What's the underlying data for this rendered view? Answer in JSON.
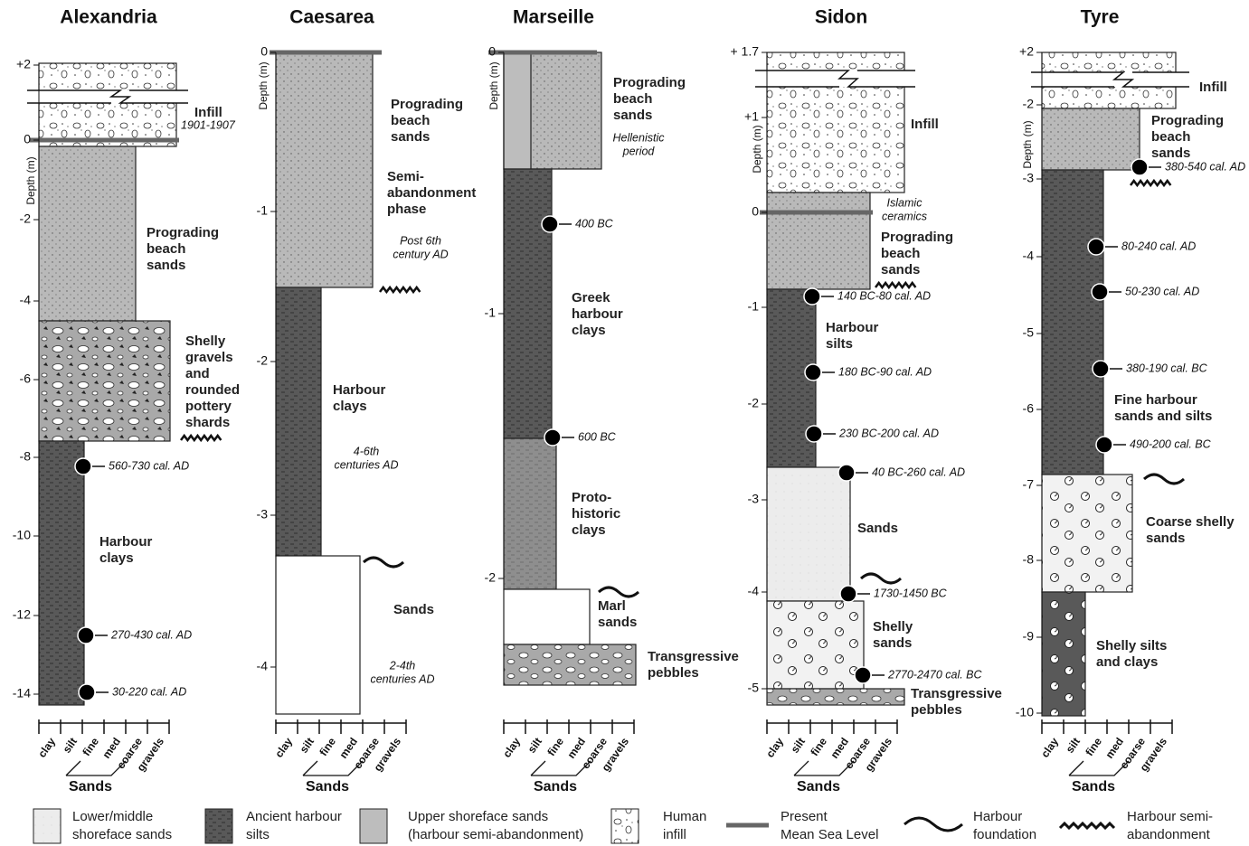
{
  "depth_label": "Depth (m)",
  "grain_scale": [
    "clay",
    "silt",
    "fine",
    "med",
    "coarse",
    "gravels"
  ],
  "sands_label": "Sands",
  "columns": [
    {
      "title": "Alexandria",
      "ticks": [
        "+2",
        "0",
        "-2",
        "-4",
        "-6",
        "-8",
        "-10",
        "-12",
        "-14"
      ],
      "labels": [
        [
          "Infill"
        ],
        [
          "1901-1907"
        ],
        [
          "Prograding",
          "beach",
          "sands"
        ],
        [
          "Shelly",
          "gravels",
          "and",
          "rounded",
          "pottery",
          "shards"
        ],
        [
          "Harbour",
          "clays"
        ]
      ],
      "dates": [
        "560-730 cal. AD",
        "270-430 cal. AD",
        "30-220 cal. AD"
      ]
    },
    {
      "title": "Caesarea",
      "ticks": [
        "0",
        "-1",
        "-2",
        "-3",
        "-4"
      ],
      "labels": [
        [
          "Prograding",
          "beach",
          "sands"
        ],
        [
          "Semi-",
          "abandonment",
          "phase"
        ],
        [
          "Post 6th",
          "century AD"
        ],
        [
          "Harbour",
          "clays"
        ],
        [
          "4-6th",
          "centuries AD"
        ],
        [
          "Sands"
        ],
        [
          "2-4th",
          "centuries AD"
        ]
      ],
      "dates": []
    },
    {
      "title": "Marseille",
      "ticks": [
        "0",
        "-1",
        "-2"
      ],
      "labels": [
        [
          "Prograding",
          "beach",
          "sands"
        ],
        [
          "Hellenistic",
          "period"
        ],
        [
          "Greek",
          "harbour",
          "clays"
        ],
        [
          "Proto-",
          "historic",
          "clays"
        ],
        [
          "Marl",
          "sands"
        ],
        [
          "Transgressive",
          "pebbles"
        ]
      ],
      "dates": [
        "400 BC",
        "600 BC"
      ]
    },
    {
      "title": "Sidon",
      "ticks": [
        "+ 1.7",
        "+1",
        "0",
        "-1",
        "-2",
        "-3",
        "-4",
        "-5"
      ],
      "labels": [
        [
          "Infill"
        ],
        [
          "Islamic",
          "ceramics"
        ],
        [
          "Prograding",
          "beach",
          "sands"
        ],
        [
          "Harbour",
          "silts"
        ],
        [
          "Sands"
        ],
        [
          "Shelly",
          "sands"
        ],
        [
          "Transgressive",
          "pebbles"
        ]
      ],
      "dates": [
        "140 BC-80 cal. AD",
        "180 BC-90 cal. AD",
        "230 BC-200 cal. AD",
        "40 BC-260 cal. AD",
        "1730-1450 BC",
        "2770-2470 cal. BC"
      ]
    },
    {
      "title": "Tyre",
      "ticks": [
        "+2",
        "-2",
        "-3",
        "-4",
        "-5",
        "-6",
        "-7",
        "-8",
        "-9",
        "-10"
      ],
      "labels": [
        [
          "Infill"
        ],
        [
          "Prograding",
          "beach",
          "sands"
        ],
        [
          "Fine harbour",
          "sands and silts"
        ],
        [
          "Coarse shelly",
          "sands"
        ],
        [
          "Shelly silts",
          "and clays"
        ]
      ],
      "dates": [
        "380-540 cal. AD",
        "80-240 cal. AD",
        "50-230 cal. AD",
        "380-190 cal. BC",
        "490-200 cal. BC"
      ]
    }
  ],
  "legend": [
    [
      "Lower/middle",
      "shoreface sands"
    ],
    [
      "Ancient harbour",
      "silts"
    ],
    [
      "Upper shoreface sands",
      "(harbour semi-abandonment)"
    ],
    [
      "Human",
      "infill"
    ],
    [
      "Present",
      "Mean Sea Level"
    ],
    [
      "Harbour",
      "foundation"
    ],
    [
      "Harbour semi-",
      "abandonment"
    ]
  ]
}
